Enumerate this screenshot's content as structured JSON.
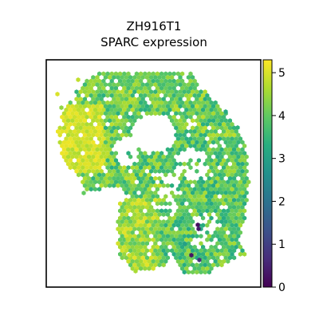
{
  "chart_data": {
    "type": "scatter",
    "title_lines": [
      "ZH916T1",
      "SPARC expression"
    ],
    "xlabel": "",
    "ylabel": "",
    "colorbar": {
      "colormap": "viridis",
      "range": [
        0,
        5.3
      ],
      "ticks": [
        0,
        1,
        2,
        3,
        4,
        5
      ],
      "tick_labels": [
        "0",
        "1",
        "2",
        "3",
        "4",
        "5"
      ]
    },
    "axes_ticks_shown": false,
    "grid": false,
    "marker": "hexagon",
    "description_of_regions": [
      {
        "region": "left-lobe",
        "typical_value": 4.7
      },
      {
        "region": "top-band",
        "typical_value": 3.8
      },
      {
        "region": "right-ring",
        "typical_value": 3.6
      },
      {
        "region": "lower-cluster",
        "typical_value": 4.4
      },
      {
        "region": "dark-spots",
        "typical_value": 0.3
      }
    ]
  }
}
